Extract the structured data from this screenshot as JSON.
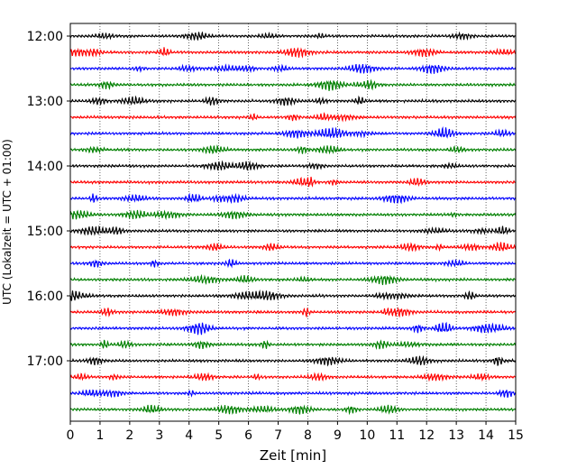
{
  "chart_data": {
    "type": "line",
    "title": "",
    "xlabel": "Zeit  [min]",
    "ylabel": "UTC (Lokalzeit = UTC + 01:00)",
    "xlim": [
      0,
      15
    ],
    "x_ticks": [
      "0",
      "1",
      "2",
      "3",
      "4",
      "5",
      "6",
      "7",
      "8",
      "9",
      "10",
      "11",
      "12",
      "13",
      "14",
      "15"
    ],
    "y_tick_labels": [
      "12:00",
      "13:00",
      "14:00",
      "15:00",
      "16:00",
      "17:00"
    ],
    "trace_interval_minutes": 15,
    "start_time": "12:00",
    "grid": "vertical dotted lines at each minute",
    "trace_colors": [
      "#000000",
      "#ff0000",
      "#0000ff",
      "#008000"
    ],
    "series": [
      {
        "start": "12:00",
        "color": "#000000"
      },
      {
        "start": "12:15",
        "color": "#ff0000"
      },
      {
        "start": "12:30",
        "color": "#0000ff"
      },
      {
        "start": "12:45",
        "color": "#008000"
      },
      {
        "start": "13:00",
        "color": "#000000"
      },
      {
        "start": "13:15",
        "color": "#ff0000"
      },
      {
        "start": "13:30",
        "color": "#0000ff"
      },
      {
        "start": "13:45",
        "color": "#008000"
      },
      {
        "start": "14:00",
        "color": "#000000"
      },
      {
        "start": "14:15",
        "color": "#ff0000"
      },
      {
        "start": "14:30",
        "color": "#0000ff"
      },
      {
        "start": "14:45",
        "color": "#008000"
      },
      {
        "start": "15:00",
        "color": "#000000"
      },
      {
        "start": "15:15",
        "color": "#ff0000"
      },
      {
        "start": "15:30",
        "color": "#0000ff"
      },
      {
        "start": "15:45",
        "color": "#008000"
      },
      {
        "start": "16:00",
        "color": "#000000"
      },
      {
        "start": "16:15",
        "color": "#ff0000"
      },
      {
        "start": "16:30",
        "color": "#0000ff"
      },
      {
        "start": "16:45",
        "color": "#008000"
      },
      {
        "start": "17:00",
        "color": "#000000"
      },
      {
        "start": "17:15",
        "color": "#ff0000"
      },
      {
        "start": "17:30",
        "color": "#0000ff"
      },
      {
        "start": "17:45",
        "color": "#008000"
      }
    ]
  }
}
